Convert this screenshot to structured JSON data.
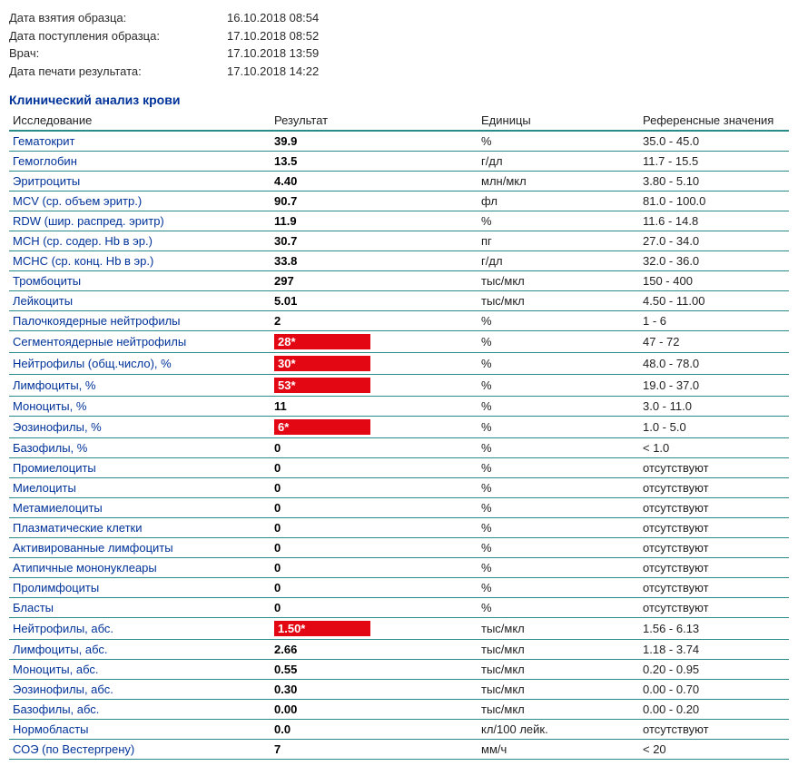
{
  "meta": [
    {
      "label": "Дата взятия образца:",
      "value": "16.10.2018 08:54"
    },
    {
      "label": "Дата поступления образца:",
      "value": "17.10.2018 08:52"
    },
    {
      "label": "Врач:",
      "value": "17.10.2018 13:59"
    },
    {
      "label": "Дата печати результата:",
      "value": "17.10.2018 14:22"
    }
  ],
  "section_title": "Клинический анализ крови",
  "headers": {
    "name": "Исследование",
    "result": "Результат",
    "units": "Единицы",
    "ref": "Референсные значения"
  },
  "rows": [
    {
      "name": "Гематокрит",
      "result": "39.9",
      "units": "%",
      "ref": "35.0 - 45.0",
      "flag": false
    },
    {
      "name": "Гемоглобин",
      "result": "13.5",
      "units": "г/дл",
      "ref": "11.7 - 15.5",
      "flag": false
    },
    {
      "name": "Эритроциты",
      "result": "4.40",
      "units": "млн/мкл",
      "ref": "3.80 - 5.10",
      "flag": false
    },
    {
      "name": "MCV (ср. объем эритр.)",
      "result": "90.7",
      "units": "фл",
      "ref": "81.0 - 100.0",
      "flag": false
    },
    {
      "name": "RDW (шир. распред. эритр)",
      "result": "11.9",
      "units": "%",
      "ref": "11.6 - 14.8",
      "flag": false
    },
    {
      "name": "MCH (ср. содер. Hb в эр.)",
      "result": "30.7",
      "units": "пг",
      "ref": "27.0 - 34.0",
      "flag": false
    },
    {
      "name": "MCHC (ср. конц. Hb в эр.)",
      "result": "33.8",
      "units": "г/дл",
      "ref": "32.0 - 36.0",
      "flag": false
    },
    {
      "name": "Тромбоциты",
      "result": "297",
      "units": "тыс/мкл",
      "ref": "150 - 400",
      "flag": false
    },
    {
      "name": "Лейкоциты",
      "result": "5.01",
      "units": "тыс/мкл",
      "ref": "4.50 - 11.00",
      "flag": false
    },
    {
      "name": "Палочкоядерные нейтрофилы",
      "result": "2",
      "units": "%",
      "ref": "1 - 6",
      "flag": false
    },
    {
      "name": "Сегментоядерные нейтрофилы",
      "result": "28*",
      "units": "%",
      "ref": "47 - 72",
      "flag": true
    },
    {
      "name": "Нейтрофилы (общ.число), %",
      "result": "30*",
      "units": "%",
      "ref": "48.0 - 78.0",
      "flag": true
    },
    {
      "name": "Лимфоциты, %",
      "result": "53*",
      "units": "%",
      "ref": "19.0 - 37.0",
      "flag": true
    },
    {
      "name": "Моноциты, %",
      "result": "11",
      "units": "%",
      "ref": "3.0 - 11.0",
      "flag": false
    },
    {
      "name": "Эозинофилы, %",
      "result": "6*",
      "units": "%",
      "ref": "1.0 - 5.0",
      "flag": true
    },
    {
      "name": "Базофилы, %",
      "result": "0",
      "units": "%",
      "ref": "< 1.0",
      "flag": false
    },
    {
      "name": "Промиелоциты",
      "result": "0",
      "units": "%",
      "ref": "отсутствуют",
      "flag": false
    },
    {
      "name": "Миелоциты",
      "result": "0",
      "units": "%",
      "ref": "отсутствуют",
      "flag": false
    },
    {
      "name": "Метамиелоциты",
      "result": "0",
      "units": "%",
      "ref": "отсутствуют",
      "flag": false
    },
    {
      "name": "Плазматические клетки",
      "result": "0",
      "units": "%",
      "ref": "отсутствуют",
      "flag": false
    },
    {
      "name": "Активированные лимфоциты",
      "result": "0",
      "units": "%",
      "ref": "отсутствуют",
      "flag": false
    },
    {
      "name": "Атипичные мононуклеары",
      "result": "0",
      "units": "%",
      "ref": "отсутствуют",
      "flag": false
    },
    {
      "name": "Пролимфоциты",
      "result": "0",
      "units": "%",
      "ref": "отсутствуют",
      "flag": false
    },
    {
      "name": "Бласты",
      "result": "0",
      "units": "%",
      "ref": "отсутствуют",
      "flag": false
    },
    {
      "name": "Нейтрофилы, абс.",
      "result": "1.50*",
      "units": "тыс/мкл",
      "ref": "1.56 - 6.13",
      "flag": true
    },
    {
      "name": "Лимфоциты, абс.",
      "result": "2.66",
      "units": "тыс/мкл",
      "ref": "1.18 - 3.74",
      "flag": false
    },
    {
      "name": "Моноциты, абс.",
      "result": "0.55",
      "units": "тыс/мкл",
      "ref": "0.20 - 0.95",
      "flag": false
    },
    {
      "name": "Эозинофилы, абс.",
      "result": "0.30",
      "units": "тыс/мкл",
      "ref": "0.00 - 0.70",
      "flag": false
    },
    {
      "name": "Базофилы, абс.",
      "result": "0.00",
      "units": "тыс/мкл",
      "ref": "0.00 - 0.20",
      "flag": false
    },
    {
      "name": "Нормобласты",
      "result": "0.0",
      "units": "кл/100 лейк.",
      "ref": "отсутствуют",
      "flag": false
    },
    {
      "name": "СОЭ (по Вестергрену)",
      "result": "7",
      "units": "мм/ч",
      "ref": "< 20",
      "flag": false
    }
  ],
  "colors": {
    "link_blue": "#003399",
    "border_teal": "#2b8a8a",
    "flag_red": "#e30613"
  }
}
